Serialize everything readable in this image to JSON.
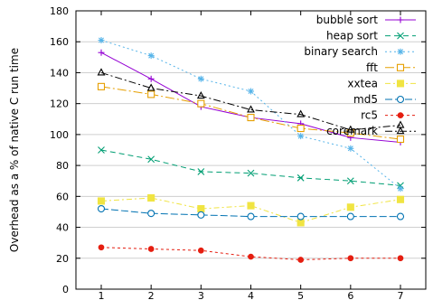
{
  "chart_data": {
    "type": "line",
    "title": "",
    "xlabel": "",
    "ylabel": "Overhead as a % of native C run time",
    "x": [
      1,
      2,
      3,
      4,
      5,
      6,
      7
    ],
    "xticks": [
      "1",
      "2",
      "3",
      "4",
      "5",
      "6",
      "7"
    ],
    "yticks": [
      "0",
      "20",
      "40",
      "60",
      "80",
      "100",
      "120",
      "140",
      "160",
      "180"
    ],
    "ylim": [
      0,
      180
    ],
    "grid": "horizontal",
    "legend_position": "top-right",
    "series": [
      {
        "name": "bubble sort",
        "color": "#9400d3",
        "dash": "",
        "marker": "plus",
        "values": [
          153,
          136,
          118,
          111,
          107,
          98,
          95
        ]
      },
      {
        "name": "heap sort",
        "color": "#009e73",
        "dash": "6,4",
        "marker": "x",
        "values": [
          90,
          84,
          76,
          75,
          72,
          70,
          67
        ]
      },
      {
        "name": "binary search",
        "color": "#56b4e9",
        "dash": "2,3",
        "marker": "star",
        "values": [
          161,
          151,
          136,
          128,
          99,
          91,
          65
        ]
      },
      {
        "name": "fft",
        "color": "#e69f00",
        "dash": "10,3,2,3",
        "marker": "square",
        "values": [
          131,
          126,
          120,
          111,
          104,
          101,
          97
        ]
      },
      {
        "name": "xxtea",
        "color": "#f0e442",
        "dash": "6,3,2,3",
        "marker": "filled-square",
        "values": [
          57,
          59,
          52,
          54,
          43,
          53,
          58
        ]
      },
      {
        "name": "md5",
        "color": "#0072b2",
        "dash": "8,3",
        "marker": "circle",
        "values": [
          52,
          49,
          48,
          47,
          47,
          47,
          47
        ]
      },
      {
        "name": "rc5",
        "color": "#e51e10",
        "dash": "3,3",
        "marker": "filled-circle",
        "values": [
          27,
          26,
          25,
          21,
          19,
          20,
          20
        ]
      },
      {
        "name": "coremark",
        "color": "#000000",
        "dash": "8,3,2,3",
        "marker": "triangle",
        "values": [
          140,
          130,
          125,
          116,
          113,
          103,
          106
        ]
      }
    ]
  }
}
